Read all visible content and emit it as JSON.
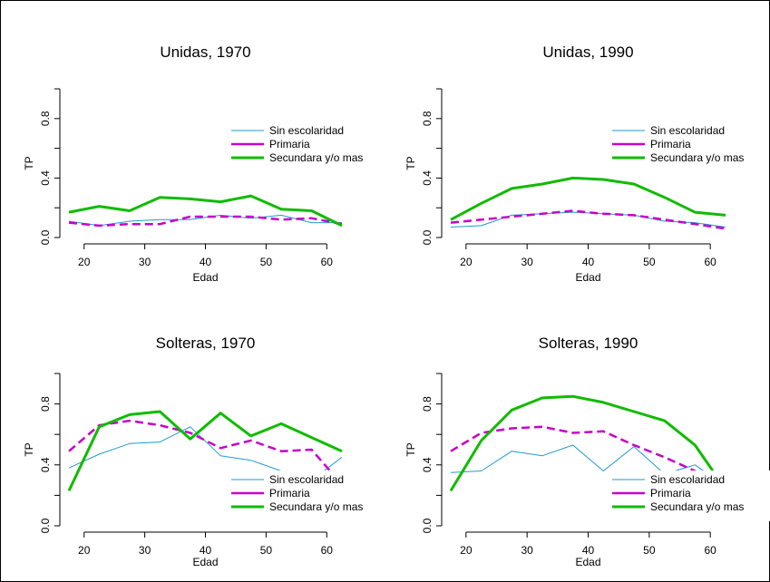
{
  "legend_labels": [
    "Sin escolaridad",
    "Primaria",
    "Secundara y/o mas"
  ],
  "colors": {
    "sin": "#1e9bd1",
    "primaria": "#c800c8",
    "secundaria": "#11bb00"
  },
  "chart_data": [
    {
      "type": "line",
      "title": "Unidas, 1970",
      "xlabel": "Edad",
      "ylabel": "TP",
      "xlim": [
        17.5,
        62.5
      ],
      "ylim": [
        0,
        1
      ],
      "x_ticks": [
        20,
        30,
        40,
        50,
        60
      ],
      "y_ticks": [
        0.0,
        0.4,
        0.8
      ],
      "y_tick_labels": [
        "0.0",
        "0.4",
        "0.8"
      ],
      "x": [
        17.5,
        22.5,
        27.5,
        32.5,
        37.5,
        42.5,
        47.5,
        52.5,
        57.5,
        62.5
      ],
      "legend_position": "top-right",
      "series": [
        {
          "name": "Sin escolaridad",
          "values": [
            0.11,
            0.08,
            0.11,
            0.12,
            0.12,
            0.15,
            0.13,
            0.15,
            0.1,
            0.1
          ]
        },
        {
          "name": "Primaria",
          "values": [
            0.1,
            0.08,
            0.09,
            0.09,
            0.14,
            0.14,
            0.14,
            0.12,
            0.13,
            0.09
          ]
        },
        {
          "name": "Secundara y/o mas",
          "values": [
            0.17,
            0.21,
            0.18,
            0.27,
            0.26,
            0.24,
            0.28,
            0.19,
            0.18,
            0.08
          ]
        }
      ]
    },
    {
      "type": "line",
      "title": "Unidas, 1990",
      "xlabel": "Edad",
      "ylabel": "TP",
      "xlim": [
        17.5,
        62.5
      ],
      "ylim": [
        0,
        1
      ],
      "x_ticks": [
        20,
        30,
        40,
        50,
        60
      ],
      "y_ticks": [
        0.0,
        0.4,
        0.8
      ],
      "y_tick_labels": [
        "0.0",
        "0.4",
        "0.8"
      ],
      "x": [
        17.5,
        22.5,
        27.5,
        32.5,
        37.5,
        42.5,
        47.5,
        52.5,
        57.5,
        62.5
      ],
      "legend_position": "top-right",
      "series": [
        {
          "name": "Sin escolaridad",
          "values": [
            0.07,
            0.08,
            0.15,
            0.16,
            0.17,
            0.16,
            0.15,
            0.11,
            0.1,
            0.07
          ]
        },
        {
          "name": "Primaria",
          "values": [
            0.1,
            0.12,
            0.14,
            0.16,
            0.18,
            0.16,
            0.15,
            0.12,
            0.09,
            0.06
          ]
        },
        {
          "name": "Secundara y/o mas",
          "values": [
            0.12,
            0.23,
            0.33,
            0.36,
            0.4,
            0.39,
            0.36,
            0.27,
            0.17,
            0.15
          ]
        }
      ]
    },
    {
      "type": "line",
      "title": "Solteras, 1970",
      "xlabel": "Edad",
      "ylabel": "TP",
      "xlim": [
        17.5,
        62.5
      ],
      "ylim": [
        0,
        1
      ],
      "x_ticks": [
        20,
        30,
        40,
        50,
        60
      ],
      "y_ticks": [
        0.0,
        0.4,
        0.8
      ],
      "y_tick_labels": [
        "0.0",
        "0.4",
        "0.8"
      ],
      "x": [
        17.5,
        22.5,
        27.5,
        32.5,
        37.5,
        42.5,
        47.5,
        52.5,
        57.5,
        62.5
      ],
      "legend_position": "bottom-right",
      "series": [
        {
          "name": "Sin escolaridad",
          "values": [
            0.38,
            0.47,
            0.54,
            0.55,
            0.65,
            0.46,
            0.43,
            0.36,
            0.3,
            0.45
          ]
        },
        {
          "name": "Primaria",
          "values": [
            0.49,
            0.66,
            0.69,
            0.66,
            0.61,
            0.51,
            0.56,
            0.49,
            0.5,
            0.27
          ]
        },
        {
          "name": "Secundara y/o mas",
          "values": [
            0.23,
            0.65,
            0.73,
            0.75,
            0.57,
            0.74,
            0.59,
            0.67,
            0.58,
            0.49
          ]
        }
      ]
    },
    {
      "type": "line",
      "title": "Solteras, 1990",
      "xlabel": "Edad",
      "ylabel": "TP",
      "xlim": [
        17.5,
        62.5
      ],
      "ylim": [
        0,
        1
      ],
      "x_ticks": [
        20,
        30,
        40,
        50,
        60
      ],
      "y_ticks": [
        0.0,
        0.4,
        0.8
      ],
      "y_tick_labels": [
        "0.0",
        "0.4",
        "0.8"
      ],
      "x": [
        17.5,
        22.5,
        27.5,
        32.5,
        37.5,
        42.5,
        47.5,
        52.5,
        57.5,
        62.5
      ],
      "legend_position": "bottom-right",
      "series": [
        {
          "name": "Sin escolaridad",
          "values": [
            0.35,
            0.36,
            0.49,
            0.46,
            0.53,
            0.36,
            0.52,
            0.34,
            0.4,
            0.26
          ]
        },
        {
          "name": "Primaria",
          "values": [
            0.49,
            0.61,
            0.64,
            0.65,
            0.61,
            0.62,
            0.53,
            0.45,
            0.36,
            0.24
          ]
        },
        {
          "name": "Secundara y/o mas",
          "values": [
            0.23,
            0.56,
            0.76,
            0.84,
            0.85,
            0.81,
            0.75,
            0.69,
            0.53,
            0.24
          ]
        }
      ]
    }
  ]
}
